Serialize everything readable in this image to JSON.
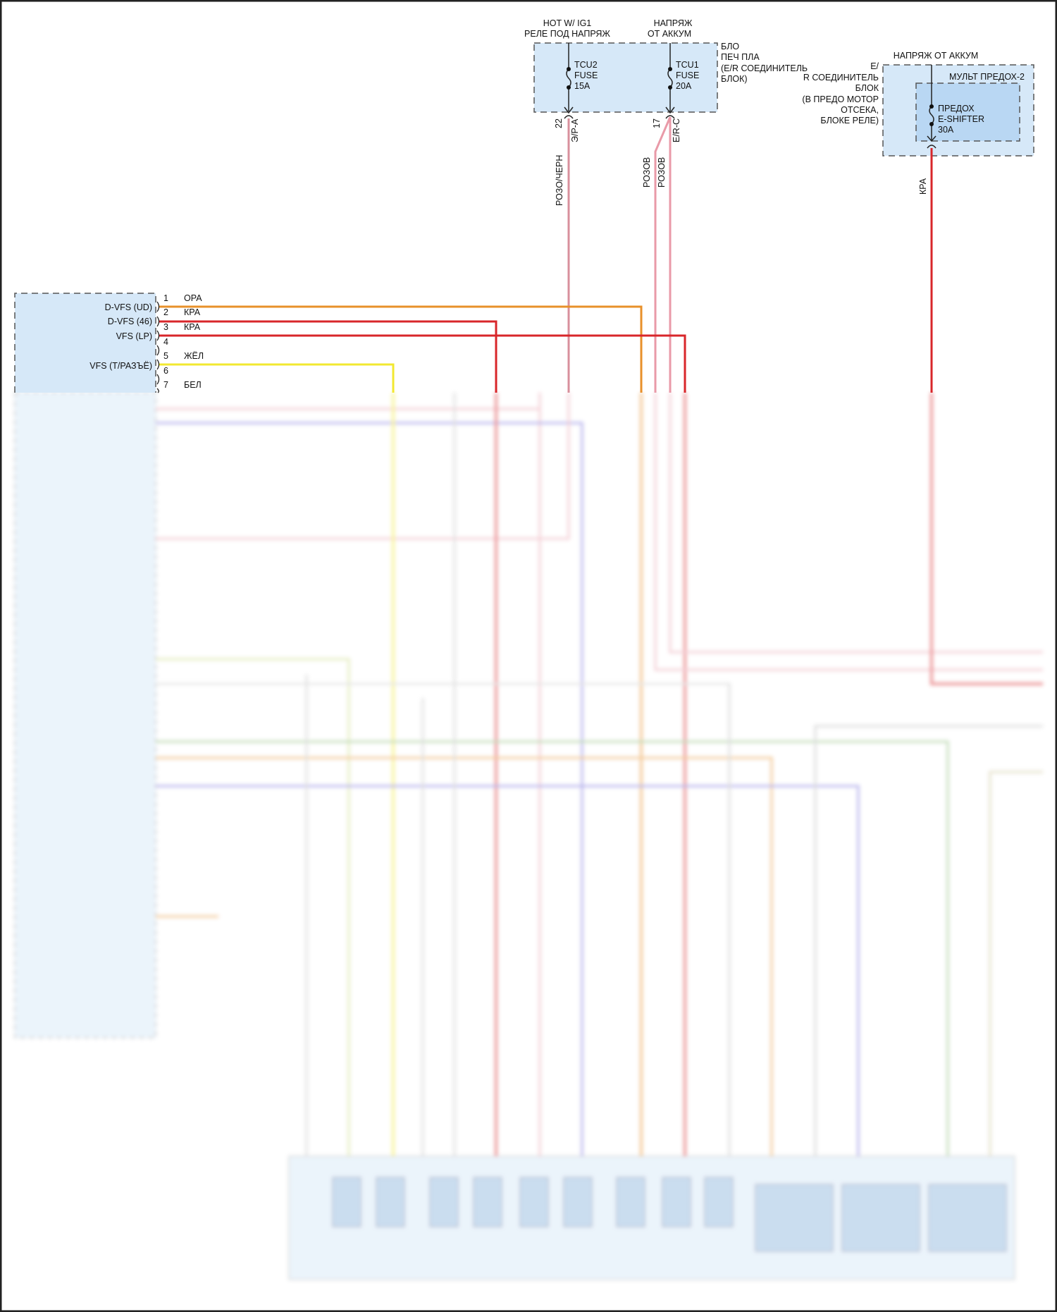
{
  "fuse_box_top": {
    "supply_left": [
      "HOT W/ IG1",
      "РЕЛЕ ПОД НАПРЯЖ"
    ],
    "supply_right": [
      "НАПРЯЖ",
      "ОТ АККУМ"
    ],
    "box_label": [
      "БЛО",
      "ПЕЧ ПЛА",
      "(E/R СОЕДИНИТЕЛЬ",
      "БЛОК)"
    ],
    "fuse_left": [
      "TCU2",
      "FUSE",
      "15A"
    ],
    "fuse_right": [
      "TCU1",
      "FUSE",
      "20A"
    ],
    "pin_left": "22",
    "conn_left": "Э/Р-А",
    "pin_right": "17",
    "conn_right": "E/R-C",
    "fill_color": "#d6e8f8"
  },
  "fuse_box_right": {
    "supply": "НАПРЯЖ ОТ АККУМ",
    "box_label": [
      "E/",
      "R СОЕДИНИТЕЛЬ",
      "БЛОК",
      "(В ПРЕДО МОТОР",
      "ОТСЕКА,",
      "БЛОКЕ РЕЛЕ)"
    ],
    "inner_label": "МУЛЬТ ПРЕДОХ-2",
    "fuse": [
      "ПРЕДОХ",
      "E-SHIFTER",
      "30A"
    ]
  },
  "wire_labels": {
    "pink_black": "РОЗО/ЧЕРН",
    "pink_1": "РОЗОВ",
    "pink_2": "РОЗОВ",
    "red": "КРА"
  },
  "tcu_connector": {
    "pins": [
      {
        "num": "1",
        "color": "ОРА",
        "name": ""
      },
      {
        "num": "2",
        "color": "КРА",
        "name": "D-VFS (UD)"
      },
      {
        "num": "3",
        "color": "КРА",
        "name": "D-VFS (46)"
      },
      {
        "num": "4",
        "color": "",
        "name": "VFS (LP)"
      },
      {
        "num": "5",
        "color": "ЖЁЛ",
        "name": ""
      },
      {
        "num": "6",
        "color": "",
        "name": "VFS (T/РАЗЪЁ)"
      },
      {
        "num": "7",
        "color": "БЕЛ",
        "name": ""
      }
    ]
  },
  "colors": {
    "orange": "#e8902a",
    "red": "#d8262a",
    "yellow": "#f2e830",
    "pink": "#e99aa8",
    "blue": "#6a62d8",
    "green": "#7fb56b",
    "gray": "#b8b8b8",
    "box_fill": "#d6e8f8"
  }
}
